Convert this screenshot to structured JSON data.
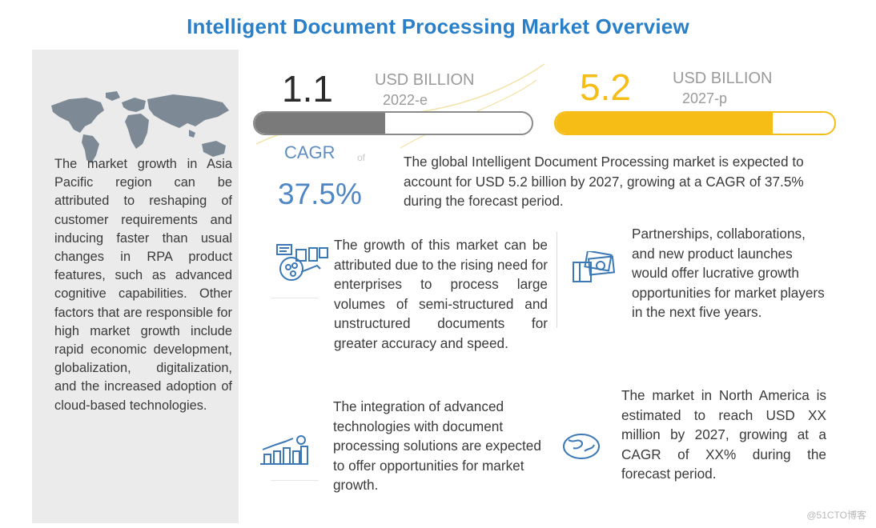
{
  "title": "Intelligent Document Processing Market Overview",
  "stats": {
    "current": {
      "value": "1.1",
      "unit": "USD BILLION",
      "year": "2022-e",
      "bar_fill_fraction": 0.47,
      "color": "#7a7a7a"
    },
    "projected": {
      "value": "5.2",
      "unit": "USD BILLION",
      "year": "2027-p",
      "bar_fill_fraction": 0.78,
      "color": "#f6bd16"
    }
  },
  "cagr": {
    "label": "CAGR",
    "of": "of",
    "value": "37.5%"
  },
  "summary": "The global Intelligent Document Processing market is expected to account for USD 5.2 billion by 2027, growing at a CAGR of 37.5% during the forecast period.",
  "left_panel": {
    "text": "The market growth in Asia Pacific region can be attributed to reshaping of customer requirements and inducing faster than usual changes in RPA product features, such as advanced cognitive capabilities. Other factors that are responsible for high market growth include rapid economic development, globalization, digitalization, and the increased adoption of cloud-based technologies."
  },
  "drivers": [
    {
      "icon": "document-processing-icon",
      "text": "The growth of this market can be attributed due to the rising need for enterprises to process large volumes of semi-structured and unstructured documents for greater accuracy and speed."
    },
    {
      "icon": "money-cards-icon",
      "text": "Partnerships, collaborations, and new product launches would offer lucrative growth opportunities for market players in the next five years."
    },
    {
      "icon": "growth-chart-icon",
      "text": "The integration of advanced technologies with document processing solutions are expected to offer opportunities for market growth."
    },
    {
      "icon": "globe-icon",
      "text": "The market in North America is estimated to reach USD XX million by 2027, growing at a CAGR of XX% during the forecast period."
    }
  ],
  "watermark": "@51CTO博客",
  "colors": {
    "title": "#2a7fc9",
    "cagr": "#4f86c6",
    "gray_bar": "#7a7a7a",
    "yellow_bar": "#f6bd16"
  }
}
